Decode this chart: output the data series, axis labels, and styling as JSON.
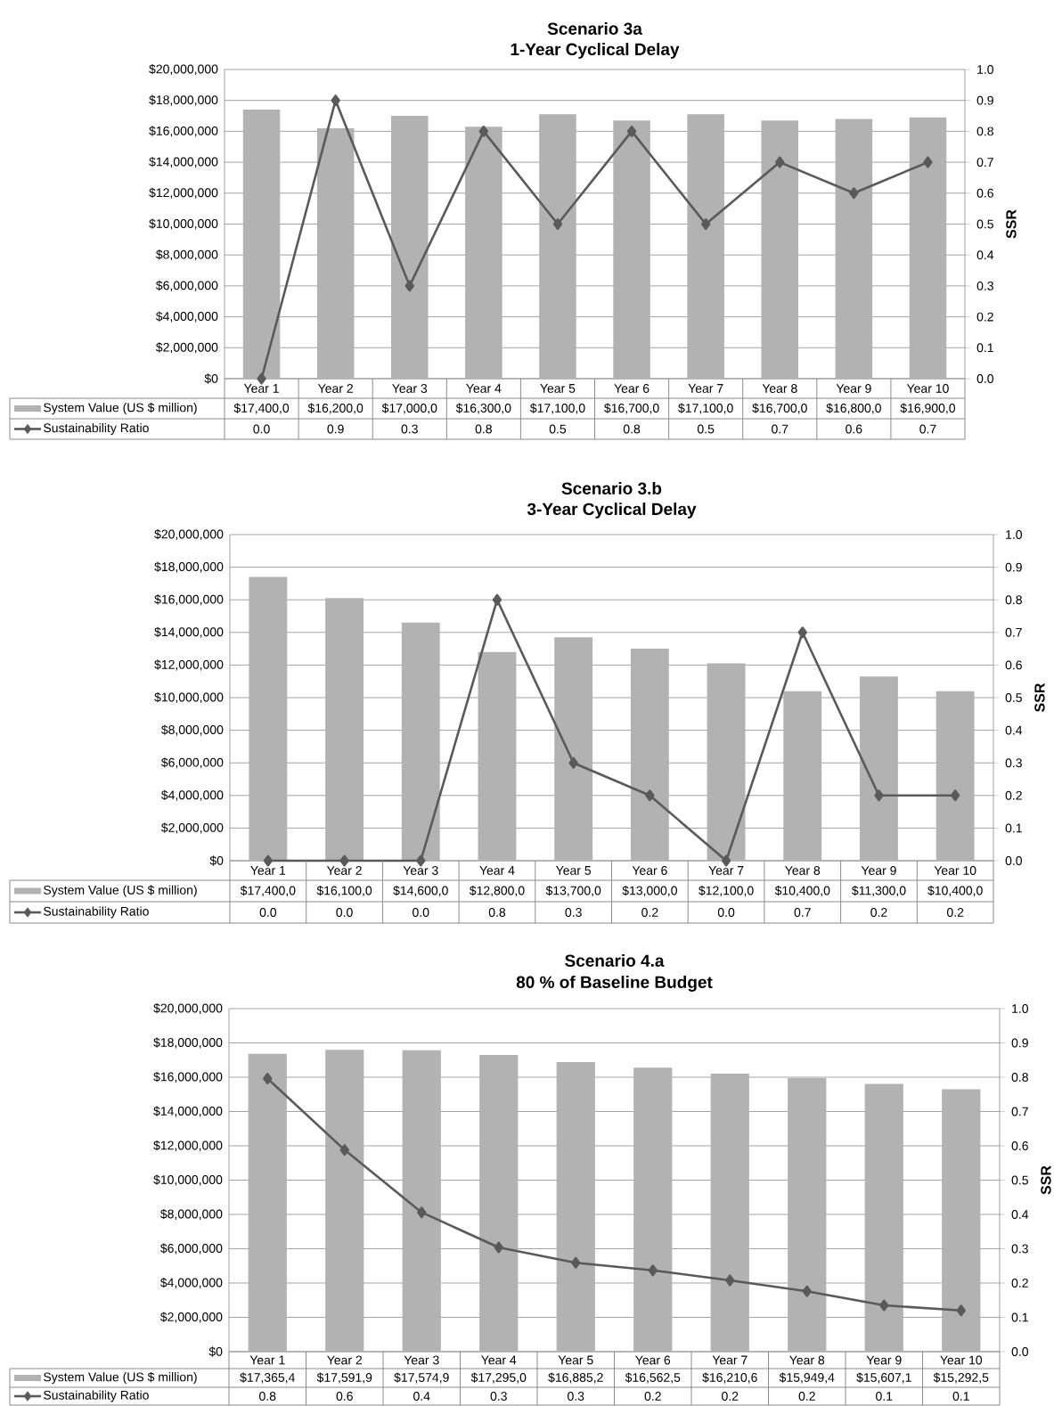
{
  "chart_data": [
    {
      "type": "bar",
      "title": "Scenario 3a",
      "subtitle": "1-Year Cyclical Delay",
      "categories": [
        "Year 1",
        "Year 2",
        "Year 3",
        "Year 4",
        "Year 5",
        "Year 6",
        "Year 7",
        "Year 8",
        "Year 9",
        "Year 10"
      ],
      "series": [
        {
          "name": "System Value (US $ million)",
          "color": "#b2b2b2",
          "values": [
            17400000,
            16200000,
            17000000,
            16300000,
            17100000,
            16700000,
            17100000,
            16700000,
            16800000,
            16900000
          ],
          "value_labels": [
            "$17,400,0",
            "$16,200,0",
            "$17,000,0",
            "$16,300,0",
            "$17,100,0",
            "$16,700,0",
            "$17,100,0",
            "$16,700,0",
            "$16,800,0",
            "$16,900,0"
          ]
        },
        {
          "name": "Sustainability Ratio",
          "type": "line",
          "axis": "y2",
          "color": "#5a5a5a",
          "values": [
            0.0,
            0.9,
            0.3,
            0.8,
            0.5,
            0.8,
            0.5,
            0.7,
            0.6,
            0.7
          ],
          "value_labels": [
            "0.0",
            "0.9",
            "0.3",
            "0.8",
            "0.5",
            "0.8",
            "0.5",
            "0.7",
            "0.6",
            "0.7"
          ]
        }
      ],
      "ylim": [
        0,
        20000000
      ],
      "yticks": [
        {
          "value": 0,
          "label": "$0"
        },
        {
          "value": 2000000,
          "label": "$2,000,000"
        },
        {
          "value": 4000000,
          "label": "$4,000,000"
        },
        {
          "value": 6000000,
          "label": "$6,000,000"
        },
        {
          "value": 8000000,
          "label": "$8,000,000"
        },
        {
          "value": 10000000,
          "label": "$10,000,000"
        },
        {
          "value": 12000000,
          "label": "$12,000,000"
        },
        {
          "value": 14000000,
          "label": "$14,000,000"
        },
        {
          "value": 16000000,
          "label": "$16,000,000"
        },
        {
          "value": 18000000,
          "label": "$18,000,000"
        },
        {
          "value": 20000000,
          "label": "$20,000,000"
        }
      ],
      "y2lim": [
        0,
        1
      ],
      "y2label": "SSR",
      "y2ticks": [
        {
          "value": 0,
          "label": "0.0"
        },
        {
          "value": 0.1,
          "label": "0.1"
        },
        {
          "value": 0.2,
          "label": "0.2"
        },
        {
          "value": 0.3,
          "label": "0.3"
        },
        {
          "value": 0.4,
          "label": "0.4"
        },
        {
          "value": 0.5,
          "label": "0.5"
        },
        {
          "value": 0.6,
          "label": "0.6"
        },
        {
          "value": 0.7,
          "label": "0.7"
        },
        {
          "value": 0.8,
          "label": "0.8"
        },
        {
          "value": 0.9,
          "label": "0.9"
        },
        {
          "value": 1,
          "label": "1.0"
        }
      ],
      "grid": "y",
      "legend": "bottom",
      "marker": "diamond"
    },
    {
      "type": "bar",
      "title": "Scenario 3.b",
      "subtitle": "3-Year Cyclical Delay",
      "categories": [
        "Year 1",
        "Year 2",
        "Year 3",
        "Year 4",
        "Year 5",
        "Year 6",
        "Year 7",
        "Year 8",
        "Year 9",
        "Year 10"
      ],
      "series": [
        {
          "name": "System Value (US $ million)",
          "color": "#b2b2b2",
          "values": [
            17400000,
            16100000,
            14600000,
            12800000,
            13700000,
            13000000,
            12100000,
            10400000,
            11300000,
            10400000
          ],
          "value_labels": [
            "$17,400,0",
            "$16,100,0",
            "$14,600,0",
            "$12,800,0",
            "$13,700,0",
            "$13,000,0",
            "$12,100,0",
            "$10,400,0",
            "$11,300,0",
            "$10,400,0"
          ]
        },
        {
          "name": "Sustainability Ratio",
          "type": "line",
          "axis": "y2",
          "color": "#5a5a5a",
          "values": [
            0.0,
            0.0,
            0.0,
            0.8,
            0.3,
            0.2,
            0.0,
            0.7,
            0.2,
            0.2
          ],
          "value_labels": [
            "0.0",
            "0.0",
            "0.0",
            "0.8",
            "0.3",
            "0.2",
            "0.0",
            "0.7",
            "0.2",
            "0.2"
          ]
        }
      ],
      "ylim": [
        0,
        20000000
      ],
      "yticks": [
        {
          "value": 0,
          "label": "$0"
        },
        {
          "value": 2000000,
          "label": "$2,000,000"
        },
        {
          "value": 4000000,
          "label": "$4,000,000"
        },
        {
          "value": 6000000,
          "label": "$6,000,000"
        },
        {
          "value": 8000000,
          "label": "$8,000,000"
        },
        {
          "value": 10000000,
          "label": "$10,000,000"
        },
        {
          "value": 12000000,
          "label": "$12,000,000"
        },
        {
          "value": 14000000,
          "label": "$14,000,000"
        },
        {
          "value": 16000000,
          "label": "$16,000,000"
        },
        {
          "value": 18000000,
          "label": "$18,000,000"
        },
        {
          "value": 20000000,
          "label": "$20,000,000"
        }
      ],
      "y2lim": [
        0,
        1
      ],
      "y2label": "SSR",
      "y2ticks": [
        {
          "value": 0,
          "label": "0.0"
        },
        {
          "value": 0.1,
          "label": "0.1"
        },
        {
          "value": 0.2,
          "label": "0.2"
        },
        {
          "value": 0.3,
          "label": "0.3"
        },
        {
          "value": 0.4,
          "label": "0.4"
        },
        {
          "value": 0.5,
          "label": "0.5"
        },
        {
          "value": 0.6,
          "label": "0.6"
        },
        {
          "value": 0.7,
          "label": "0.7"
        },
        {
          "value": 0.8,
          "label": "0.8"
        },
        {
          "value": 0.9,
          "label": "0.9"
        },
        {
          "value": 1,
          "label": "1.0"
        }
      ],
      "grid": "y",
      "legend": "bottom",
      "marker": "diamond"
    },
    {
      "type": "bar",
      "title": "Scenario 4.a",
      "subtitle": "80 % of Baseline Budget",
      "categories": [
        "Year 1",
        "Year 2",
        "Year 3",
        "Year 4",
        "Year 5",
        "Year 6",
        "Year 7",
        "Year 8",
        "Year 9",
        "Year 10"
      ],
      "series": [
        {
          "name": "System Value (US $ million)",
          "color": "#b2b2b2",
          "values": [
            17365400,
            17591900,
            17574900,
            17295000,
            16885200,
            16562500,
            16210600,
            15949400,
            15607100,
            15292500
          ],
          "value_labels": [
            "$17,365,4",
            "$17,591,9",
            "$17,574,9",
            "$17,295,0",
            "$16,885,2",
            "$16,562,5",
            "$16,210,6",
            "$15,949,4",
            "$15,607,1",
            "$15,292,5"
          ]
        },
        {
          "name": "Sustainability Ratio",
          "type": "line",
          "axis": "y2",
          "color": "#5a5a5a",
          "values": [
            0.796,
            0.588,
            0.406,
            0.304,
            0.259,
            0.237,
            0.208,
            0.176,
            0.135,
            0.12
          ],
          "value_labels": [
            "0.8",
            "0.6",
            "0.4",
            "0.3",
            "0.3",
            "0.2",
            "0.2",
            "0.2",
            "0.1",
            "0.1"
          ]
        }
      ],
      "ylim": [
        0,
        20000000
      ],
      "yticks": [
        {
          "value": 0,
          "label": "$0"
        },
        {
          "value": 2000000,
          "label": "$2,000,000"
        },
        {
          "value": 4000000,
          "label": "$4,000,000"
        },
        {
          "value": 6000000,
          "label": "$6,000,000"
        },
        {
          "value": 8000000,
          "label": "$8,000,000"
        },
        {
          "value": 10000000,
          "label": "$10,000,000"
        },
        {
          "value": 12000000,
          "label": "$12,000,000"
        },
        {
          "value": 14000000,
          "label": "$14,000,000"
        },
        {
          "value": 16000000,
          "label": "$16,000,000"
        },
        {
          "value": 18000000,
          "label": "$18,000,000"
        },
        {
          "value": 20000000,
          "label": "$20,000,000"
        }
      ],
      "y2lim": [
        0,
        1
      ],
      "y2label": "SSR",
      "y2ticks": [
        {
          "value": 0,
          "label": "0.0"
        },
        {
          "value": 0.1,
          "label": "0.1"
        },
        {
          "value": 0.2,
          "label": "0.2"
        },
        {
          "value": 0.3,
          "label": "0.3"
        },
        {
          "value": 0.4,
          "label": "0.4"
        },
        {
          "value": 0.5,
          "label": "0.5"
        },
        {
          "value": 0.6,
          "label": "0.6"
        },
        {
          "value": 0.7,
          "label": "0.7"
        },
        {
          "value": 0.8,
          "label": "0.8"
        },
        {
          "value": 0.9,
          "label": "0.9"
        },
        {
          "value": 1,
          "label": "1.0"
        }
      ],
      "grid": "y",
      "legend": "bottom",
      "marker": "diamond"
    }
  ]
}
